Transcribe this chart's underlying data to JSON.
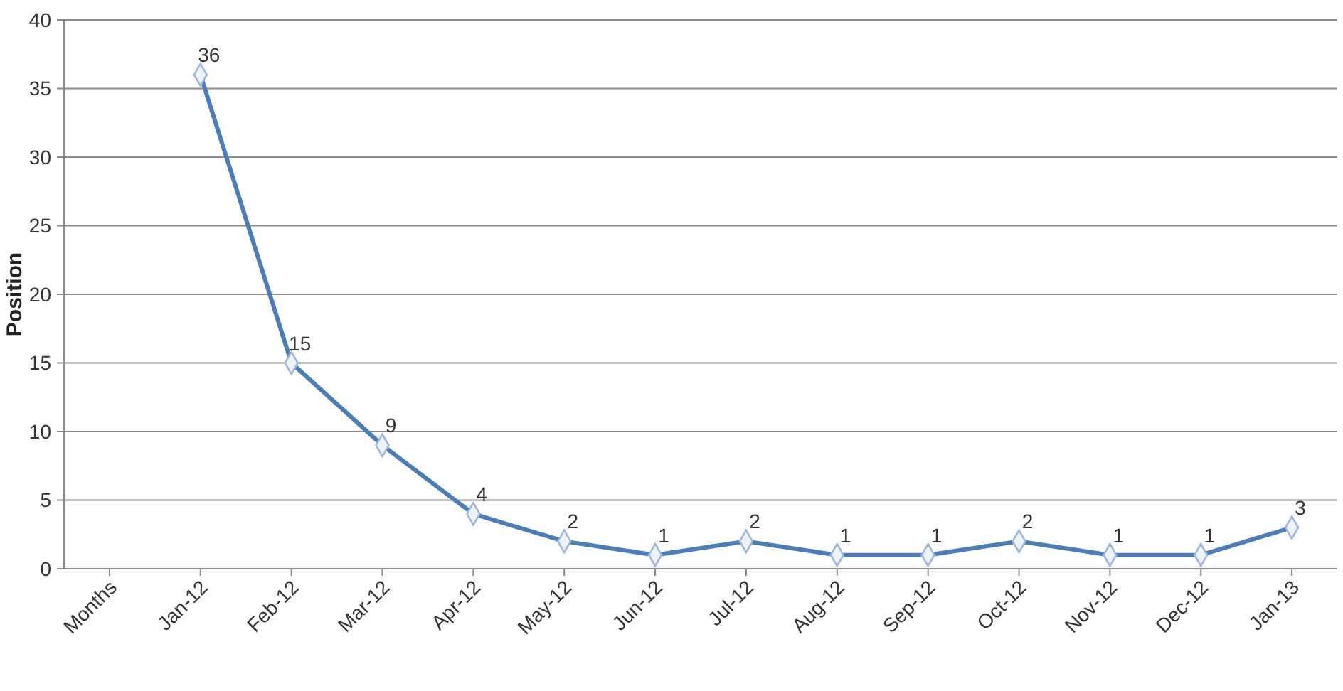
{
  "chart_data": {
    "type": "line",
    "ylabel": "Position",
    "categories": [
      "Months",
      "Jan-12",
      "Feb-12",
      "Mar-12",
      "Apr-12",
      "May-12",
      "Jun-12",
      "Jul-12",
      "Aug-12",
      "Sep-12",
      "Oct-12",
      "Nov-12",
      "Dec-12",
      "Jan-13"
    ],
    "series": [
      {
        "color": "#4a7ebb",
        "values": [
          null,
          36,
          15,
          9,
          4,
          2,
          1,
          2,
          1,
          1,
          2,
          1,
          1,
          3
        ]
      }
    ],
    "ylim": [
      0,
      40
    ],
    "yticks": [
      0,
      5,
      10,
      15,
      20,
      25,
      30,
      35,
      40
    ],
    "grid": "y",
    "marker": "diamond",
    "line_style": "solid",
    "data_labels": true
  }
}
